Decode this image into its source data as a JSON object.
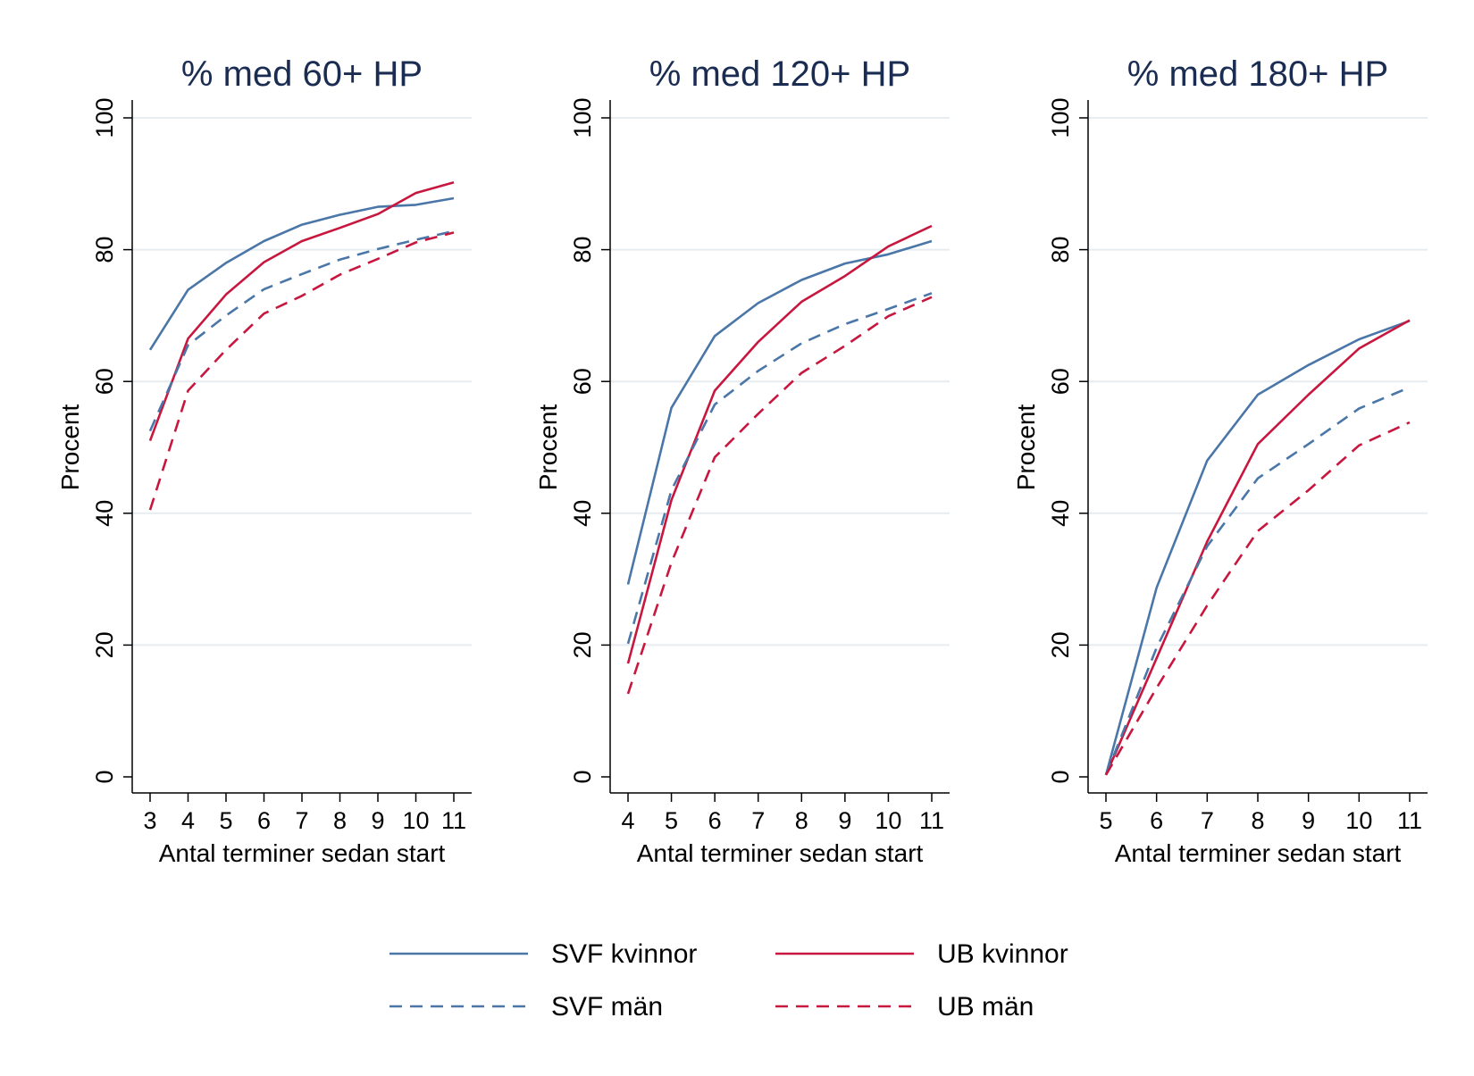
{
  "chart_data": [
    {
      "type": "line",
      "title": "% med 60+ HP",
      "xlabel": "Antal terminer sedan start",
      "ylabel": "Procent",
      "x": [
        3,
        4,
        5,
        6,
        7,
        8,
        9,
        10,
        11
      ],
      "xlim": [
        3,
        11
      ],
      "ylim": [
        0,
        100
      ],
      "yticks": [
        0,
        20,
        40,
        60,
        80,
        100
      ],
      "grid": true,
      "series": [
        {
          "name": "SVF kvinnor",
          "values": [
            64.8,
            73.9,
            78.0,
            81.3,
            83.8,
            85.3,
            86.5,
            86.8,
            87.8
          ]
        },
        {
          "name": "UB kvinnor",
          "values": [
            51.0,
            66.5,
            73.2,
            78.1,
            81.3,
            83.3,
            85.4,
            88.6,
            90.2
          ]
        },
        {
          "name": "SVF män",
          "values": [
            52.5,
            65.5,
            70.0,
            74.0,
            76.3,
            78.5,
            80.1,
            81.5,
            82.8
          ]
        },
        {
          "name": "UB män",
          "values": [
            40.5,
            58.6,
            64.8,
            70.3,
            73.0,
            76.2,
            78.6,
            81.1,
            82.6
          ]
        }
      ]
    },
    {
      "type": "line",
      "title": "% med 120+ HP",
      "xlabel": "Antal terminer sedan start",
      "ylabel": "Procent",
      "x": [
        4,
        5,
        6,
        7,
        8,
        9,
        10,
        11
      ],
      "xlim": [
        4,
        11
      ],
      "ylim": [
        0,
        100
      ],
      "yticks": [
        0,
        20,
        40,
        60,
        80,
        100
      ],
      "grid": true,
      "series": [
        {
          "name": "SVF kvinnor",
          "values": [
            29.2,
            56.0,
            66.9,
            71.9,
            75.4,
            77.9,
            79.3,
            81.3
          ]
        },
        {
          "name": "UB kvinnor",
          "values": [
            17.2,
            42.0,
            58.6,
            66.0,
            72.1,
            76.0,
            80.5,
            83.6
          ]
        },
        {
          "name": "SVF män",
          "values": [
            20.2,
            43.5,
            56.5,
            61.6,
            65.8,
            68.7,
            71.0,
            73.4
          ]
        },
        {
          "name": "UB män",
          "values": [
            12.6,
            32.5,
            48.5,
            55.1,
            61.3,
            65.4,
            69.9,
            72.8
          ]
        }
      ]
    },
    {
      "type": "line",
      "title": "% med 180+ HP",
      "xlabel": "Antal terminer sedan start",
      "ylabel": "Procent",
      "x": [
        5,
        6,
        7,
        8,
        9,
        10,
        11
      ],
      "xlim": [
        5,
        11
      ],
      "ylim": [
        0,
        100
      ],
      "yticks": [
        0,
        20,
        40,
        60,
        80,
        100
      ],
      "grid": true,
      "series": [
        {
          "name": "SVF kvinnor",
          "values": [
            0.3,
            28.7,
            48.0,
            58.0,
            62.5,
            66.4,
            69.2
          ]
        },
        {
          "name": "UB kvinnor",
          "values": [
            0.3,
            18.0,
            35.7,
            50.5,
            58.0,
            65.0,
            69.3
          ]
        },
        {
          "name": "SVF män",
          "values": [
            0.3,
            19.6,
            35.0,
            45.3,
            50.5,
            55.9,
            59.1
          ]
        },
        {
          "name": "UB män",
          "values": [
            0.3,
            13.5,
            26.0,
            37.3,
            43.5,
            50.3,
            53.8
          ]
        }
      ]
    }
  ],
  "legend": {
    "placement": "bottom",
    "items": [
      {
        "label": "SVF kvinnor",
        "color": "#4a76a8",
        "dashed": false
      },
      {
        "label": "UB kvinnor",
        "color": "#c8173f",
        "dashed": false
      },
      {
        "label": "SVF män",
        "color": "#4a76a8",
        "dashed": true
      },
      {
        "label": "UB män",
        "color": "#c8173f",
        "dashed": true
      }
    ]
  },
  "colors": {
    "svf": "#4a76a8",
    "ub": "#c8173f",
    "title": "#1a2c52",
    "grid": "#e6ecef"
  }
}
